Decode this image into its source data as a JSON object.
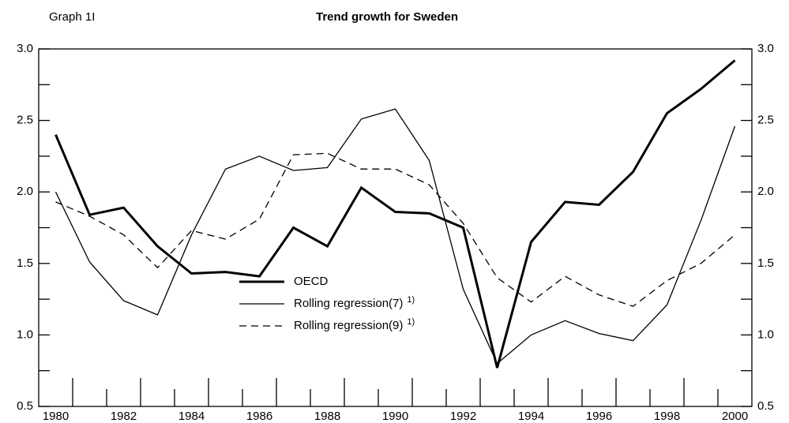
{
  "chart_data": {
    "type": "line",
    "label": "Graph 1I",
    "title": "Trend growth for Sweden",
    "x": [
      1980,
      1981,
      1982,
      1983,
      1984,
      1985,
      1986,
      1987,
      1988,
      1989,
      1990,
      1991,
      1992,
      1993,
      1994,
      1995,
      1996,
      1997,
      1998,
      1999,
      2000
    ],
    "xlim": [
      1979.5,
      2000.5
    ],
    "xticks": [
      1980,
      1982,
      1984,
      1986,
      1988,
      1990,
      1992,
      1994,
      1996,
      1998,
      2000
    ],
    "ylim": [
      0.5,
      3.0
    ],
    "yticks": [
      0.5,
      {
        "value": 1,
        "label": "1.0"
      },
      1.5,
      {
        "value": 2,
        "label": "2.0"
      },
      2.5,
      {
        "value": 3,
        "label": "3.0"
      }
    ],
    "yminorticks": [
      0.75,
      1.25,
      1.75,
      2.25,
      2.75
    ],
    "series": [
      {
        "name": "OECD",
        "color": "#000000",
        "line_width": 3,
        "dashed": false,
        "values": [
          2.4,
          1.84,
          1.89,
          1.62,
          1.43,
          1.44,
          1.41,
          1.75,
          1.62,
          2.03,
          1.86,
          1.85,
          1.75,
          0.77,
          1.65,
          1.93,
          1.91,
          2.14,
          2.55,
          2.72,
          2.92
        ]
      },
      {
        "name": "Rolling regression(7)",
        "note_ref": "1)",
        "color": "#000000",
        "line_width": 1.3,
        "dashed": false,
        "values": [
          2.0,
          1.51,
          1.24,
          1.14,
          1.7,
          2.16,
          2.25,
          2.15,
          2.17,
          2.51,
          2.58,
          2.22,
          1.32,
          0.8,
          1.0,
          1.1,
          1.01,
          0.96,
          1.21,
          1.8,
          2.46
        ]
      },
      {
        "name": "Rolling regression(9)",
        "note_ref": "1)",
        "color": "#000000",
        "line_width": 1.3,
        "dashed": true,
        "values": [
          1.93,
          1.83,
          1.7,
          1.47,
          1.73,
          1.67,
          1.81,
          2.26,
          2.27,
          2.16,
          2.16,
          2.05,
          1.78,
          1.4,
          1.23,
          1.41,
          1.28,
          1.2,
          1.38,
          1.5,
          1.7
        ]
      }
    ]
  }
}
